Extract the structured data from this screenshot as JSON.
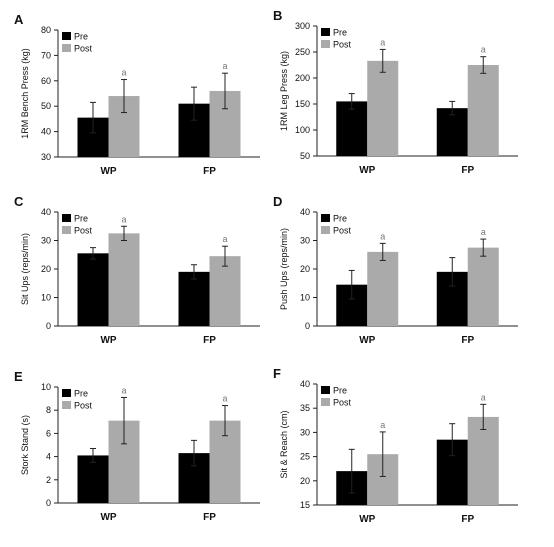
{
  "colors": {
    "pre": "#000000",
    "post": "#aaaaaa",
    "axis": "#222222",
    "sig": "#777777"
  },
  "chart_data": [
    {
      "type": "bar",
      "letter": "A",
      "ylabel": "1RM Bench Press (kg)",
      "categories": [
        "WP",
        "FP"
      ],
      "ylim": [
        30,
        80
      ],
      "yticks": [
        30,
        40,
        50,
        60,
        70,
        80
      ],
      "series": [
        {
          "name": "Pre",
          "values": [
            45.5,
            51
          ],
          "errors": [
            6,
            6.5
          ]
        },
        {
          "name": "Post",
          "values": [
            54,
            56
          ],
          "errors": [
            6.5,
            7
          ]
        }
      ],
      "annotations": [
        {
          "series": "Post",
          "category": "WP",
          "text": "a"
        },
        {
          "series": "Post",
          "category": "FP",
          "text": "a"
        }
      ]
    },
    {
      "type": "bar",
      "letter": "B",
      "ylabel": "1RM Leg Press (kg)",
      "categories": [
        "WP",
        "FP"
      ],
      "ylim": [
        50,
        300
      ],
      "yticks": [
        50,
        100,
        150,
        200,
        250,
        300
      ],
      "series": [
        {
          "name": "Pre",
          "values": [
            155,
            142
          ],
          "errors": [
            15,
            13
          ]
        },
        {
          "name": "Post",
          "values": [
            233,
            225
          ],
          "errors": [
            22,
            16
          ]
        }
      ],
      "annotations": [
        {
          "series": "Post",
          "category": "WP",
          "text": "a"
        },
        {
          "series": "Post",
          "category": "FP",
          "text": "a"
        }
      ]
    },
    {
      "type": "bar",
      "letter": "C",
      "ylabel": "Sit Ups (reps/min)",
      "categories": [
        "WP",
        "FP"
      ],
      "ylim": [
        0,
        40
      ],
      "yticks": [
        0,
        10,
        20,
        30,
        40
      ],
      "series": [
        {
          "name": "Pre",
          "values": [
            25.5,
            19
          ],
          "errors": [
            2,
            2.5
          ]
        },
        {
          "name": "Post",
          "values": [
            32.5,
            24.5
          ],
          "errors": [
            2.5,
            3.5
          ]
        }
      ],
      "annotations": [
        {
          "series": "Post",
          "category": "WP",
          "text": "a"
        },
        {
          "series": "Post",
          "category": "FP",
          "text": "a"
        }
      ]
    },
    {
      "type": "bar",
      "letter": "D",
      "ylabel": "Push Ups (reps/min)",
      "categories": [
        "WP",
        "FP"
      ],
      "ylim": [
        0,
        40
      ],
      "yticks": [
        0,
        10,
        20,
        30,
        40
      ],
      "series": [
        {
          "name": "Pre",
          "values": [
            14.5,
            19
          ],
          "errors": [
            5,
            5
          ]
        },
        {
          "name": "Post",
          "values": [
            26,
            27.5
          ],
          "errors": [
            3,
            3
          ]
        }
      ],
      "annotations": [
        {
          "series": "Post",
          "category": "WP",
          "text": "a"
        },
        {
          "series": "Post",
          "category": "FP",
          "text": "a"
        }
      ]
    },
    {
      "type": "bar",
      "letter": "E",
      "ylabel": "Stork Stand (s)",
      "categories": [
        "WP",
        "FP"
      ],
      "ylim": [
        0,
        10
      ],
      "yticks": [
        0,
        2,
        4,
        6,
        8,
        10
      ],
      "series": [
        {
          "name": "Pre",
          "values": [
            4.1,
            4.3
          ],
          "errors": [
            0.6,
            1.1
          ]
        },
        {
          "name": "Post",
          "values": [
            7.1,
            7.1
          ],
          "errors": [
            2,
            1.3
          ]
        }
      ],
      "annotations": [
        {
          "series": "Post",
          "category": "WP",
          "text": "a"
        },
        {
          "series": "Post",
          "category": "FP",
          "text": "a"
        }
      ]
    },
    {
      "type": "bar",
      "letter": "F",
      "ylabel": "Sit & Reach (cm)",
      "categories": [
        "WP",
        "FP"
      ],
      "ylim": [
        15,
        40
      ],
      "yticks": [
        15,
        20,
        25,
        30,
        35,
        40
      ],
      "series": [
        {
          "name": "Pre",
          "values": [
            22,
            28.5
          ],
          "errors": [
            4.5,
            3.3
          ]
        },
        {
          "name": "Post",
          "values": [
            25.5,
            33.2
          ],
          "errors": [
            4.6,
            2.6
          ]
        }
      ],
      "annotations": [
        {
          "series": "Post",
          "category": "WP",
          "text": "a"
        },
        {
          "series": "Post",
          "category": "FP",
          "text": "a"
        }
      ]
    }
  ]
}
